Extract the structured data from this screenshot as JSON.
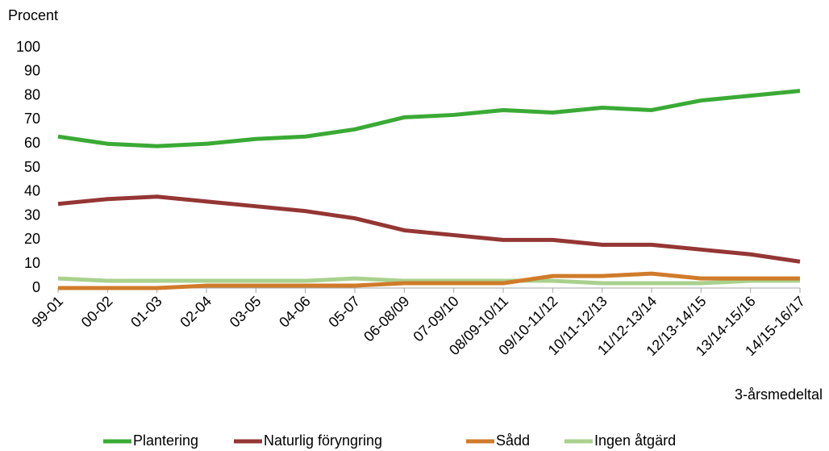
{
  "chart_data": {
    "type": "line",
    "y_axis_label": "Procent",
    "x_axis_label": "3-årsmedeltal",
    "categories": [
      "99-01",
      "00-02",
      "01-03",
      "02-04",
      "03-05",
      "04-06",
      "05-07",
      "06-08/09",
      "07-09/10",
      "08/09-10/11",
      "09/10-11/12",
      "10/11-12/13",
      "11/12-13/14",
      "12/13-14/15",
      "13/14-15/16",
      "14/15-16/17"
    ],
    "series": [
      {
        "name": "Plantering",
        "color": "#3aaa35",
        "values": [
          63,
          60,
          59,
          60,
          62,
          63,
          66,
          71,
          72,
          74,
          73,
          75,
          74,
          78,
          80,
          82
        ]
      },
      {
        "name": "Naturlig föryngring",
        "color": "#943634",
        "values": [
          35,
          37,
          38,
          36,
          34,
          32,
          29,
          24,
          22,
          20,
          20,
          18,
          18,
          16,
          14,
          11
        ]
      },
      {
        "name": "Sådd",
        "color": "#d07b2a",
        "values": [
          0,
          0,
          0,
          1,
          1,
          1,
          1,
          2,
          2,
          2,
          5,
          5,
          6,
          4,
          4,
          4
        ]
      },
      {
        "name": "Ingen åtgärd",
        "color": "#a9d18e",
        "values": [
          4,
          3,
          3,
          3,
          3,
          3,
          4,
          3,
          3,
          3,
          3,
          2,
          2,
          2,
          3,
          3
        ]
      }
    ],
    "ylim": [
      0,
      100
    ],
    "yticks": [
      0,
      10,
      20,
      30,
      40,
      50,
      60,
      70,
      80,
      90,
      100
    ],
    "grid": false,
    "legend": "bottom"
  }
}
